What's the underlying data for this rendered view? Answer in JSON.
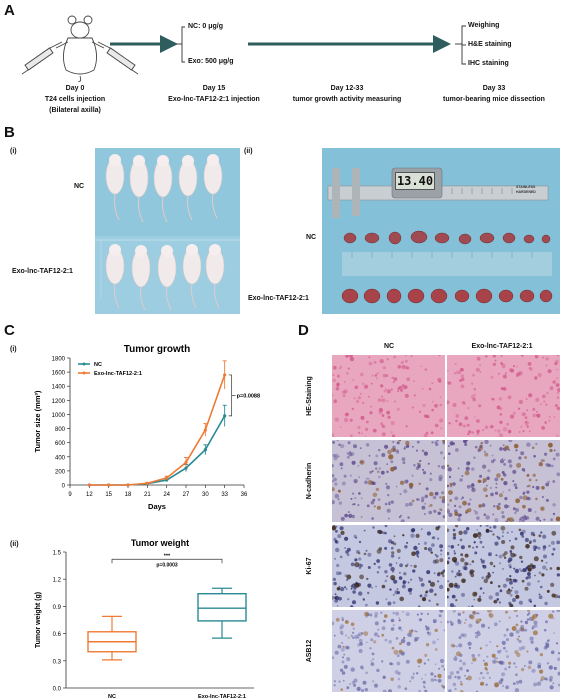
{
  "panels": {
    "a": "A",
    "b": "B",
    "c": "C",
    "d": "D"
  },
  "timeline": {
    "groups": [
      "NC: 0 μg/g",
      "Exo: 500 μg/g"
    ],
    "outcomes": [
      "Weighing",
      "H&E staining",
      "IHC staining"
    ],
    "steps": [
      {
        "day": "Day 0",
        "desc": "T24 cells injection",
        "desc2": "(Bilateral axilla)"
      },
      {
        "day": "Day 15",
        "desc": "Exo-lnc-TAF12-2:1 injection"
      },
      {
        "day": "Day 12-33",
        "desc": "tumor growth activity measuring"
      },
      {
        "day": "Day 33",
        "desc": "tumor-bearing mice dissection"
      }
    ]
  },
  "panel_b": {
    "sub_i": "(i)",
    "sub_ii": "(ii)",
    "row_nc": "NC",
    "row_exo": "Exo-lnc-TAF12-2:1",
    "caliper_readout": "13.40",
    "caliper_label_1": "STAINLESS",
    "caliper_label_2": "HARDENED"
  },
  "panel_c": {
    "sub_i": "(i)",
    "sub_ii": "(ii)"
  },
  "panel_d": {
    "col_nc": "NC",
    "col_exo": "Exo-lnc-TAF12-2:1",
    "rows": [
      "HE-Staining",
      "N-cadherin",
      "Ki-67",
      "ASB12"
    ]
  },
  "colors": {
    "nc": "#2a8a94",
    "exo": "#ee7a36",
    "arrow": "#2f5d5d"
  },
  "chart_data": [
    {
      "type": "line",
      "title": "Tumor growth",
      "xlabel": "Days",
      "ylabel": "Tumor size (mm³)",
      "xlim": [
        9,
        36
      ],
      "ylim": [
        0,
        1800
      ],
      "xticks": [
        9,
        12,
        15,
        18,
        21,
        24,
        27,
        30,
        33,
        36
      ],
      "yticks": [
        0,
        200,
        400,
        600,
        800,
        1000,
        1200,
        1400,
        1600,
        1800
      ],
      "x": [
        12,
        15,
        18,
        21,
        24,
        27,
        30,
        33
      ],
      "series": [
        {
          "name": "NC",
          "values": [
            0,
            0,
            0,
            20,
            70,
            240,
            500,
            980
          ],
          "errors": [
            0,
            0,
            0,
            10,
            20,
            50,
            70,
            150
          ]
        },
        {
          "name": "Exo-lnc-TAF12-2:1",
          "values": [
            0,
            0,
            0,
            25,
            100,
            320,
            780,
            1560
          ],
          "errors": [
            0,
            0,
            0,
            10,
            25,
            70,
            90,
            200
          ]
        }
      ],
      "annotation": "p=0.0088",
      "legend": "top-left"
    },
    {
      "type": "box",
      "title": "Tumor weight",
      "ylabel": "Tumor weight (g)",
      "ylim": [
        0,
        1.5
      ],
      "yticks": [
        0.0,
        0.3,
        0.6,
        0.9,
        1.2,
        1.5
      ],
      "categories": [
        "NC",
        "Exo-lnc-TAF12-2:1"
      ],
      "boxes": [
        {
          "min": 0.31,
          "q1": 0.4,
          "median": 0.51,
          "q3": 0.62,
          "max": 0.79
        },
        {
          "min": 0.55,
          "q1": 0.74,
          "median": 0.88,
          "q3": 1.04,
          "max": 1.1
        }
      ],
      "significance": "***",
      "annotation": "p=0.0003"
    }
  ]
}
